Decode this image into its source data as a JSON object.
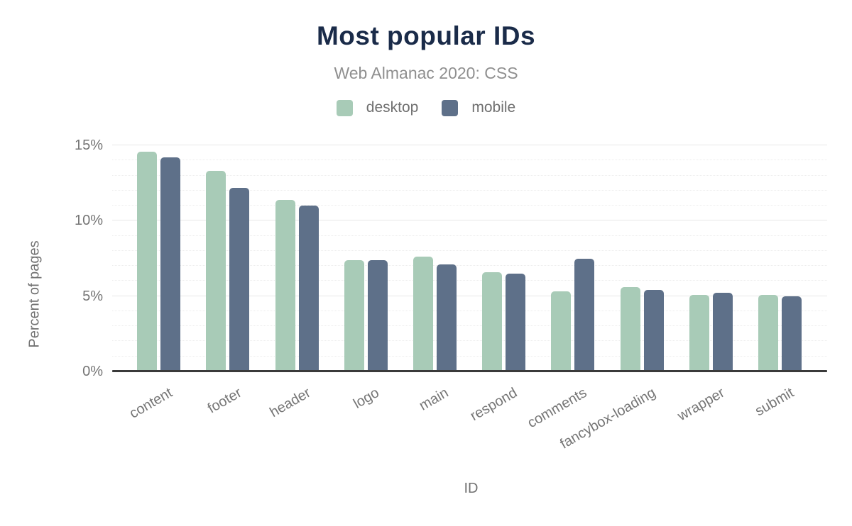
{
  "chart": {
    "title": "Most popular IDs",
    "subtitle": "Web Almanac 2020: CSS"
  },
  "chart_data": {
    "type": "bar",
    "title": "Most popular IDs",
    "subtitle": "Web Almanac 2020: CSS",
    "categories": [
      "content",
      "footer",
      "header",
      "logo",
      "main",
      "respond",
      "comments",
      "fancybox-loading",
      "wrapper",
      "submit"
    ],
    "series": [
      {
        "name": "desktop",
        "color": "#a8cbb7",
        "values": [
          14.6,
          13.3,
          11.4,
          7.4,
          7.6,
          6.6,
          5.3,
          5.6,
          5.1,
          5.1
        ]
      },
      {
        "name": "mobile",
        "color": "#5e7089",
        "values": [
          14.2,
          12.2,
          11.0,
          7.4,
          7.1,
          6.5,
          7.5,
          5.4,
          5.2,
          5.0
        ]
      }
    ],
    "xlabel": "ID",
    "ylabel": "Percent of pages",
    "ylim": [
      0,
      15
    ],
    "yticks": [
      0,
      5,
      10,
      15
    ],
    "ytick_labels": [
      "0%",
      "5%",
      "10%",
      "15%"
    ],
    "minor_grid_step": 1,
    "grid": true,
    "legend_position": "top",
    "colors": {
      "title": "#1a2b49",
      "subtitle": "#8f8f8f",
      "axis_text": "#757575",
      "axis_line": "#3a3a3a"
    }
  }
}
